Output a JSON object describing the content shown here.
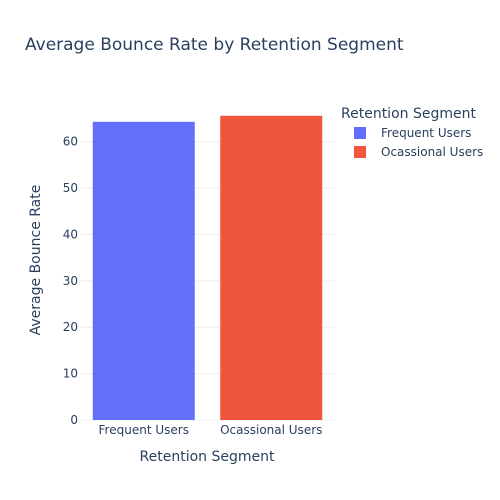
{
  "chart_data": {
    "type": "bar",
    "title": "Average Bounce Rate by Retention Segment",
    "xlabel": "Retention Segment",
    "ylabel": "Average Bounce Rate",
    "categories": [
      "Frequent Users",
      "Ocassional Users"
    ],
    "series": [
      {
        "name": "Frequent Users",
        "category": "Frequent Users",
        "value": 64.3,
        "color": "#636efa"
      },
      {
        "name": "Ocassional Users",
        "category": "Ocassional Users",
        "value": 65.6,
        "color": "#ef553b"
      }
    ],
    "ylim": [
      0,
      69
    ],
    "yticks": [
      0,
      10,
      20,
      30,
      40,
      50,
      60
    ],
    "grid": true,
    "legend": {
      "title": "Retention Segment",
      "placement": "right"
    }
  }
}
